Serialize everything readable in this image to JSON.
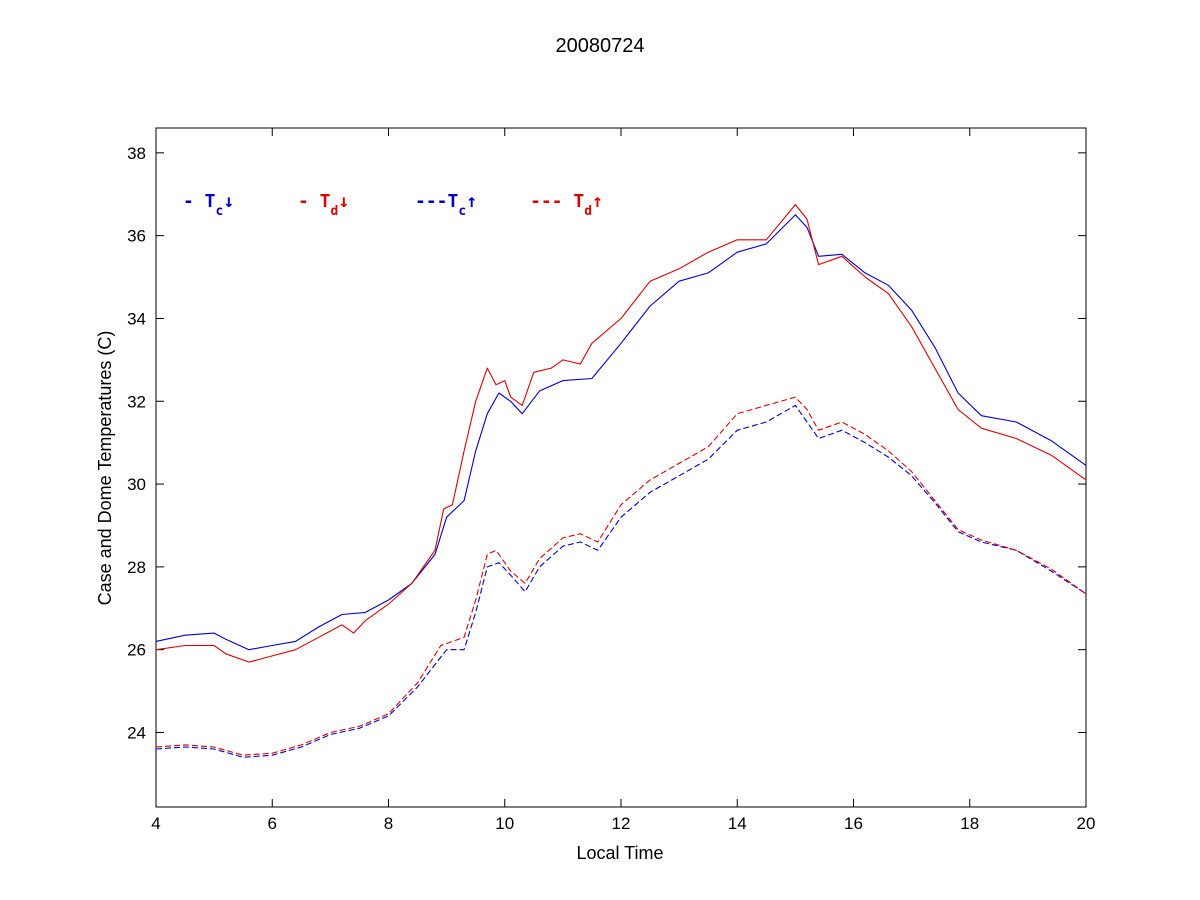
{
  "chart_data": {
    "type": "line",
    "title": "20080724",
    "xlabel": "Local Time",
    "ylabel": "Case and Dome Temperatures (C)",
    "xlim": [
      4,
      20
    ],
    "ylim": [
      22.2,
      38.6
    ],
    "xticks": [
      4,
      6,
      8,
      10,
      12,
      14,
      16,
      18,
      20
    ],
    "yticks": [
      24,
      26,
      28,
      30,
      32,
      34,
      36,
      38
    ],
    "grid": false,
    "legend_placement": "top-left",
    "series": [
      {
        "legend": {
          "prefix": "- T",
          "sub": "c",
          "arrow": "↓"
        },
        "color": "#0000cc",
        "style": "solid",
        "x": [
          4.0,
          4.5,
          5.0,
          5.2,
          5.6,
          6.0,
          6.4,
          6.8,
          7.2,
          7.6,
          8.0,
          8.4,
          8.8,
          9.0,
          9.3,
          9.5,
          9.7,
          9.9,
          10.1,
          10.3,
          10.6,
          11.0,
          11.5,
          12.0,
          12.5,
          13.0,
          13.5,
          14.0,
          14.5,
          15.0,
          15.2,
          15.4,
          15.8,
          16.2,
          16.6,
          17.0,
          17.4,
          17.8,
          18.2,
          18.8,
          19.4,
          20.0
        ],
        "y": [
          26.2,
          26.35,
          26.4,
          26.25,
          26.0,
          26.1,
          26.2,
          26.55,
          26.85,
          26.9,
          27.2,
          27.6,
          28.3,
          29.2,
          29.6,
          30.8,
          31.7,
          32.2,
          32.0,
          31.7,
          32.25,
          32.5,
          32.55,
          33.4,
          34.3,
          34.9,
          35.1,
          35.6,
          35.8,
          36.5,
          36.2,
          35.5,
          35.55,
          35.1,
          34.8,
          34.2,
          33.3,
          32.2,
          31.65,
          31.5,
          31.05,
          30.45
        ]
      },
      {
        "legend": {
          "prefix": "- T",
          "sub": "d",
          "arrow": "↓"
        },
        "color": "#dd0000",
        "style": "solid",
        "x": [
          4.0,
          4.5,
          5.0,
          5.2,
          5.6,
          6.0,
          6.4,
          6.8,
          7.2,
          7.4,
          7.6,
          8.0,
          8.4,
          8.8,
          8.95,
          9.1,
          9.3,
          9.5,
          9.7,
          9.85,
          10.0,
          10.1,
          10.3,
          10.5,
          10.8,
          11.0,
          11.3,
          11.5,
          12.0,
          12.5,
          13.0,
          13.5,
          14.0,
          14.5,
          15.0,
          15.2,
          15.4,
          15.8,
          16.2,
          16.6,
          17.0,
          17.4,
          17.8,
          18.2,
          18.8,
          19.4,
          20.0
        ],
        "y": [
          26.0,
          26.1,
          26.1,
          25.9,
          25.7,
          25.85,
          26.0,
          26.3,
          26.6,
          26.4,
          26.7,
          27.1,
          27.6,
          28.4,
          29.4,
          29.5,
          30.8,
          32.0,
          32.8,
          32.4,
          32.5,
          32.1,
          31.9,
          32.7,
          32.8,
          33.0,
          32.9,
          33.4,
          34.0,
          34.9,
          35.2,
          35.6,
          35.9,
          35.9,
          36.75,
          36.4,
          35.3,
          35.5,
          35.0,
          34.6,
          33.8,
          32.8,
          31.8,
          31.35,
          31.1,
          30.7,
          30.1
        ]
      },
      {
        "legend": {
          "prefix": "---T",
          "sub": "c",
          "arrow": "↑"
        },
        "color": "#0000cc",
        "style": "dashed",
        "x": [
          4.0,
          4.5,
          5.0,
          5.5,
          6.0,
          6.5,
          7.0,
          7.5,
          8.0,
          8.5,
          9.0,
          9.3,
          9.5,
          9.7,
          9.9,
          10.1,
          10.35,
          10.6,
          11.0,
          11.3,
          11.6,
          12.0,
          12.5,
          13.0,
          13.5,
          14.0,
          14.5,
          15.0,
          15.2,
          15.4,
          15.8,
          16.2,
          16.6,
          17.0,
          17.4,
          17.8,
          18.2,
          18.8,
          19.4,
          20.0
        ],
        "y": [
          23.6,
          23.65,
          23.6,
          23.4,
          23.45,
          23.65,
          23.95,
          24.1,
          24.4,
          25.1,
          26.0,
          26.0,
          26.9,
          28.0,
          28.1,
          27.8,
          27.4,
          28.0,
          28.5,
          28.6,
          28.4,
          29.2,
          29.8,
          30.2,
          30.6,
          31.3,
          31.5,
          31.9,
          31.5,
          31.1,
          31.3,
          31.0,
          30.65,
          30.2,
          29.55,
          28.85,
          28.6,
          28.4,
          27.9,
          27.35
        ]
      },
      {
        "legend": {
          "prefix": "--- T",
          "sub": "d",
          "arrow": "↑"
        },
        "color": "#dd0000",
        "style": "dashed",
        "x": [
          4.0,
          4.5,
          5.0,
          5.5,
          6.0,
          6.5,
          7.0,
          7.5,
          8.0,
          8.5,
          8.9,
          9.3,
          9.5,
          9.7,
          9.85,
          10.1,
          10.35,
          10.6,
          11.0,
          11.3,
          11.6,
          12.0,
          12.5,
          13.0,
          13.5,
          14.0,
          14.5,
          15.0,
          15.2,
          15.4,
          15.8,
          16.2,
          16.6,
          17.0,
          17.4,
          17.8,
          18.2,
          18.8,
          19.4,
          20.0
        ],
        "y": [
          23.65,
          23.7,
          23.65,
          23.45,
          23.5,
          23.7,
          24.0,
          24.15,
          24.45,
          25.2,
          26.1,
          26.3,
          27.2,
          28.3,
          28.4,
          27.9,
          27.6,
          28.2,
          28.7,
          28.8,
          28.6,
          29.5,
          30.1,
          30.5,
          30.9,
          31.7,
          31.9,
          32.1,
          31.8,
          31.3,
          31.5,
          31.2,
          30.8,
          30.3,
          29.6,
          28.9,
          28.65,
          28.4,
          27.95,
          27.35
        ]
      }
    ]
  }
}
